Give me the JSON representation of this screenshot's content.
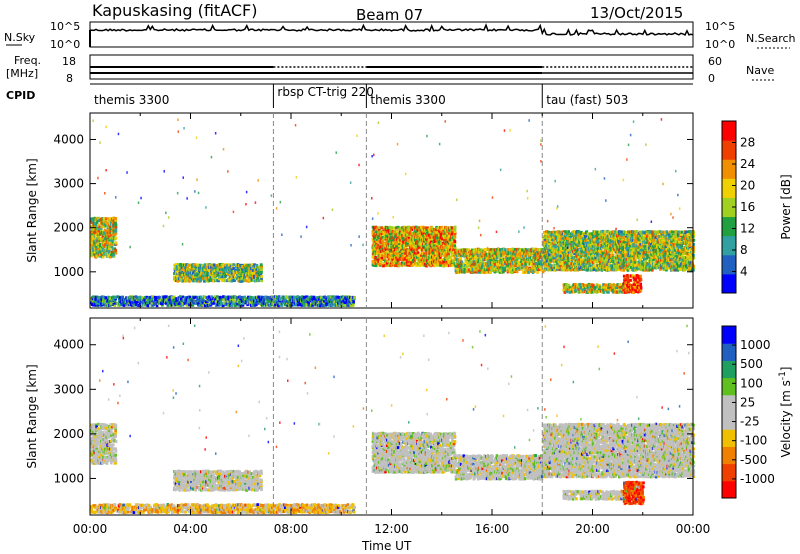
{
  "header": {
    "station": "Kapuskasing (fitACF)",
    "beam": "Beam 07",
    "date": "13/Oct/2015"
  },
  "nsky_panel": {
    "left_label": "N.Sky",
    "right_label": "N.Search",
    "left_ticks": [
      "10^5",
      "10^0"
    ],
    "right_ticks": [
      "10^5",
      "10^0"
    ]
  },
  "freq_panel": {
    "left_label_line1": "Freq.",
    "left_label_line2": "[MHz]",
    "right_label": "Nave",
    "left_ticks": [
      "18",
      "8"
    ],
    "right_ticks": [
      "60",
      "0"
    ]
  },
  "cpid_panel": {
    "label": "CPID",
    "segments": [
      {
        "start_hour": 0,
        "name": "themis 3300"
      },
      {
        "start_hour": 7.3,
        "name": "rbsp CT-trig 220"
      },
      {
        "start_hour": 11,
        "name": "themis 3300"
      },
      {
        "start_hour": 18,
        "name": "tau (fast) 503"
      }
    ]
  },
  "chart_data": [
    {
      "type": "heatmap",
      "title": "",
      "ylabel": "Slant Range [km]",
      "xlabel": "",
      "xlim": [
        0,
        24
      ],
      "ylim": [
        180,
        4600
      ],
      "yticks": [
        1000,
        2000,
        3000,
        4000
      ],
      "colorbar": {
        "label": "Power [dB]",
        "ticks": [
          "28",
          "24",
          "20",
          "16",
          "12",
          "8",
          "4"
        ],
        "colors": [
          "#0000ff",
          "#2060c0",
          "#30a0a0",
          "#20a040",
          "#a0d020",
          "#f0d000",
          "#f09000",
          "#f04000",
          "#ff0000"
        ],
        "range": [
          0,
          32
        ]
      },
      "regions": [
        {
          "t0": 0.0,
          "t1": 1.0,
          "r0": 1300,
          "r1": 2200,
          "level": 0.55
        },
        {
          "t0": 3.3,
          "t1": 6.8,
          "r0": 750,
          "r1": 1150,
          "level": 0.45
        },
        {
          "t0": 11.2,
          "t1": 14.5,
          "r0": 1100,
          "r1": 2000,
          "level": 0.65
        },
        {
          "t0": 14.5,
          "t1": 18.0,
          "r0": 950,
          "r1": 1500,
          "level": 0.55
        },
        {
          "t0": 18.0,
          "t1": 24.0,
          "r0": 1000,
          "r1": 1900,
          "level": 0.5
        },
        {
          "t0": 18.8,
          "t1": 21.5,
          "r0": 500,
          "r1": 700,
          "level": 0.55
        },
        {
          "t0": 21.2,
          "t1": 21.9,
          "r0": 500,
          "r1": 900,
          "level": 0.9
        },
        {
          "t0": 0.0,
          "t1": 10.5,
          "r0": 200,
          "r1": 420,
          "level": 0.25
        }
      ]
    },
    {
      "type": "heatmap",
      "title": "",
      "ylabel": "Slant Range [km]",
      "xlabel": "Time UT",
      "xlim": [
        0,
        24
      ],
      "ylim": [
        180,
        4600
      ],
      "yticks": [
        1000,
        2000,
        3000,
        4000
      ],
      "xticks": [
        "00:00",
        "04:00",
        "08:00",
        "12:00",
        "16:00",
        "20:00",
        "00:00"
      ],
      "colorbar": {
        "label": "Velocity [m s^-1]",
        "ticks": [
          "1000",
          "500",
          "100",
          "25",
          "-25",
          "-100",
          "-500",
          "-1000"
        ],
        "colors": [
          "#ff0000",
          "#f04000",
          "#f08000",
          "#f0c000",
          "#c0c0c0",
          "#c0c0c0",
          "#60c020",
          "#20a060",
          "#2060c0",
          "#0000ff"
        ],
        "range": [
          -1200,
          1200
        ]
      },
      "regions": [
        {
          "t0": 0.0,
          "t1": 1.0,
          "r0": 1300,
          "r1": 2200,
          "level": 0.5
        },
        {
          "t0": 3.3,
          "t1": 6.8,
          "r0": 700,
          "r1": 1150,
          "level": 0.5
        },
        {
          "t0": 11.2,
          "t1": 14.5,
          "r0": 1100,
          "r1": 2000,
          "level": 0.5
        },
        {
          "t0": 14.5,
          "t1": 18.0,
          "r0": 950,
          "r1": 1500,
          "level": 0.5
        },
        {
          "t0": 18.0,
          "t1": 24.0,
          "r0": 1000,
          "r1": 2200,
          "level": 0.5
        },
        {
          "t0": 18.8,
          "t1": 21.5,
          "r0": 500,
          "r1": 700,
          "level": 0.5
        },
        {
          "t0": 21.2,
          "t1": 22.0,
          "r0": 400,
          "r1": 900,
          "level": 0.15
        },
        {
          "t0": 0.0,
          "t1": 10.5,
          "r0": 200,
          "r1": 400,
          "level": 0.35
        }
      ]
    }
  ]
}
